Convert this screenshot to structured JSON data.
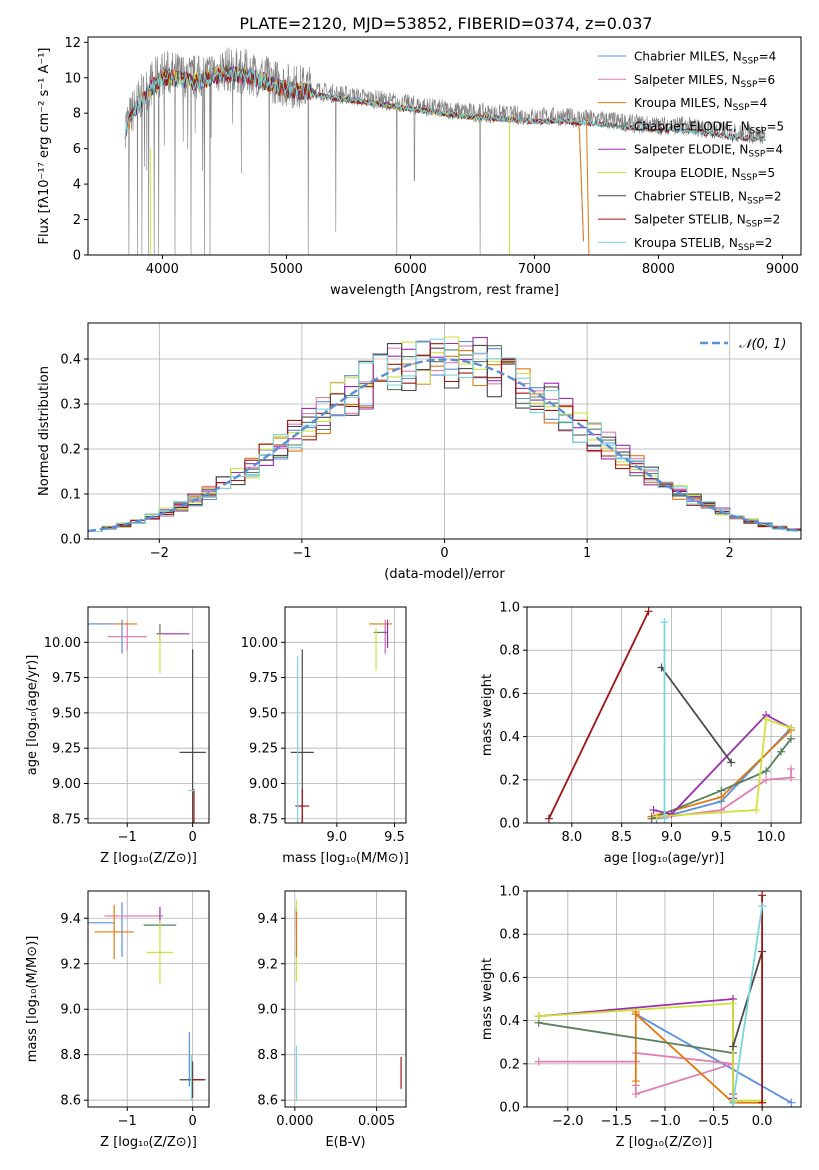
{
  "figure_title": "PLATE=2120, MJD=53852, FIBERID=0374, z=0.037",
  "colors": {
    "Chabrier MILES": "#5b8fe0",
    "Salpeter MILES": "#e07fb4",
    "Kroupa MILES": "#e07a10",
    "Chabrier ELODIE": "#5a7f5f",
    "Salpeter ELODIE": "#9b2fae",
    "Kroupa ELODIE": "#cfe23a",
    "Chabrier STELIB": "#4a4a4a",
    "Salpeter STELIB": "#a01414",
    "Kroupa STELIB": "#7ad6dc",
    "data": "#808080",
    "normal": "#5b8fd6"
  },
  "chart_data": [
    {
      "id": "spectrum",
      "type": "line",
      "title": "PLATE=2120, MJD=53852, FIBERID=0374, z=0.037",
      "xlabel": "wavelength [Angstrom, rest frame]",
      "ylabel": "Flux [fλ10⁻¹⁷ erg cm⁻² s⁻¹ A⁻¹]",
      "xlim": [
        3400,
        9150
      ],
      "ylim": [
        0,
        12.3
      ],
      "xticks": [
        "4000",
        "5000",
        "6000",
        "7000",
        "8000",
        "9000"
      ],
      "yticks": [
        "0",
        "2",
        "4",
        "6",
        "8",
        "10",
        "12"
      ],
      "legend_position": "top-right",
      "legend": [
        {
          "name": "Chabrier MILES",
          "nssp": "4"
        },
        {
          "name": "Salpeter MILES",
          "nssp": "6"
        },
        {
          "name": "Kroupa MILES",
          "nssp": "4"
        },
        {
          "name": "Chabrier ELODIE",
          "nssp": "5"
        },
        {
          "name": "Salpeter ELODIE",
          "nssp": "4"
        },
        {
          "name": "Kroupa ELODIE",
          "nssp": "5"
        },
        {
          "name": "Chabrier STELIB",
          "nssp": "2"
        },
        {
          "name": "Salpeter STELIB",
          "nssp": "2"
        },
        {
          "name": "Kroupa STELIB",
          "nssp": "2"
        }
      ],
      "data_continuum": [
        [
          3700,
          7.3
        ],
        [
          3800,
          8.6
        ],
        [
          3900,
          9.6
        ],
        [
          4000,
          10.3
        ],
        [
          4100,
          10.2
        ],
        [
          4200,
          10.1
        ],
        [
          4300,
          10.0
        ],
        [
          4400,
          10.3
        ],
        [
          4500,
          10.5
        ],
        [
          4600,
          10.4
        ],
        [
          4700,
          10.3
        ],
        [
          4800,
          10.1
        ],
        [
          4900,
          9.8
        ],
        [
          5000,
          9.6
        ],
        [
          5100,
          9.5
        ],
        [
          5200,
          9.4
        ],
        [
          5300,
          9.2
        ],
        [
          5400,
          9.1
        ],
        [
          5500,
          9.0
        ],
        [
          5600,
          8.9
        ],
        [
          5800,
          8.7
        ],
        [
          6000,
          8.5
        ],
        [
          6200,
          8.3
        ],
        [
          6400,
          8.1
        ],
        [
          6600,
          8.0
        ],
        [
          6800,
          7.9
        ],
        [
          7000,
          7.8
        ],
        [
          7200,
          7.8
        ],
        [
          7400,
          7.7
        ],
        [
          7600,
          7.6
        ],
        [
          7800,
          7.4
        ],
        [
          8000,
          7.3
        ],
        [
          8200,
          7.3
        ],
        [
          8400,
          7.1
        ],
        [
          8600,
          6.9
        ],
        [
          8800,
          6.8
        ],
        [
          8860,
          6.8
        ]
      ],
      "model_ranges": {
        "MILES": [
          3700,
          7400
        ],
        "ELODIE": [
          3900,
          6800
        ],
        "STELIB": [
          3700,
          8860
        ]
      }
    },
    {
      "id": "residuals",
      "type": "histogram",
      "xlabel": "(data-model)/error",
      "ylabel": "Normed distribution",
      "xlim": [
        -2.5,
        2.5
      ],
      "ylim": [
        0,
        0.48
      ],
      "xticks": [
        "−2",
        "−1",
        "0",
        "1",
        "2"
      ],
      "yticks": [
        "0.0",
        "0.1",
        "0.2",
        "0.3",
        "0.4"
      ],
      "bin_width": 0.1,
      "reference_curve": "𝒩(0, 1)",
      "legend_position": "top-right"
    },
    {
      "id": "age_vs_Z",
      "type": "scatter",
      "xlabel": "Z [log₁₀(Z/Z⊙)]",
      "ylabel": "age  [log₁₀(age/yr)]",
      "xlim": [
        -1.6,
        0.25
      ],
      "ylim": [
        8.72,
        10.25
      ],
      "xticks": [
        "−1",
        "0"
      ],
      "yticks": [
        "8.75",
        "9.00",
        "9.25",
        "9.50",
        "9.75",
        "10.00"
      ],
      "points": [
        {
          "series": "Chabrier MILES",
          "x": -1.08,
          "y": 10.04,
          "xerr": 0.0,
          "yerr": 0.12
        },
        {
          "series": "Salpeter MILES",
          "x": -1.0,
          "y": 10.04,
          "xerr": 0.3,
          "yerr": 0.1
        },
        {
          "series": "Kroupa MILES",
          "x": -1.2,
          "y": 10.13,
          "xerr": 0.35,
          "yerr": 0.0
        },
        {
          "series": "Chabrier ELODIE",
          "x": -0.5,
          "y": 10.07,
          "xerr": 0.0,
          "yerr": 0.06
        },
        {
          "series": "Salpeter ELODIE",
          "x": -0.3,
          "y": 10.06,
          "xerr": 0.25,
          "yerr": 0.0
        },
        {
          "series": "Kroupa ELODIE",
          "x": -0.5,
          "y": 9.92,
          "xerr": 0.0,
          "yerr": 0.14
        },
        {
          "series": "Chabrier STELIB",
          "x": 0.0,
          "y": 9.22,
          "xerr": 0.2,
          "yerr": 0.73
        },
        {
          "series": "Salpeter STELIB",
          "x": 0.02,
          "y": 8.84,
          "xerr": 0.0,
          "yerr": 0.12
        },
        {
          "series": "Kroupa STELIB",
          "x": -0.02,
          "y": 8.95,
          "xerr": 0.05,
          "yerr": 0.0
        },
        {
          "series": "Chabrier MILES",
          "x": -1.4,
          "y": 10.13,
          "xerr": 0.2,
          "yerr": 0.0
        }
      ]
    },
    {
      "id": "age_vs_mass",
      "type": "scatter",
      "xlabel": "mass [log₁₀(M/M⊙)]",
      "ylabel": "",
      "xlim": [
        8.55,
        9.6
      ],
      "ylim": [
        8.72,
        10.25
      ],
      "xticks": [
        "9.0",
        "9.5"
      ],
      "yticks": [
        "8.75",
        "9.00",
        "9.25",
        "9.50",
        "9.75",
        "10.00"
      ],
      "points": [
        {
          "series": "Chabrier MILES",
          "x": 9.42,
          "y": 10.04,
          "xerr": 0.0,
          "yerr": 0.12
        },
        {
          "series": "Salpeter MILES",
          "x": 9.42,
          "y": 10.04,
          "xerr": 0.0,
          "yerr": 0.12
        },
        {
          "series": "Kroupa MILES",
          "x": 9.38,
          "y": 10.13,
          "xerr": 0.1,
          "yerr": 0.0
        },
        {
          "series": "Chabrier ELODIE",
          "x": 9.38,
          "y": 10.07,
          "xerr": 0.06,
          "yerr": 0.0
        },
        {
          "series": "Salpeter ELODIE",
          "x": 9.44,
          "y": 10.06,
          "xerr": 0.0,
          "yerr": 0.1
        },
        {
          "series": "Kroupa ELODIE",
          "x": 9.34,
          "y": 9.95,
          "xerr": 0.0,
          "yerr": 0.15
        },
        {
          "series": "Chabrier STELIB",
          "x": 8.7,
          "y": 9.22,
          "xerr": 0.1,
          "yerr": 0.73
        },
        {
          "series": "Salpeter STELIB",
          "x": 8.7,
          "y": 8.84,
          "xerr": 0.06,
          "yerr": 0.12
        },
        {
          "series": "Kroupa STELIB",
          "x": 8.66,
          "y": 8.95,
          "xerr": 0.0,
          "yerr": 0.95
        }
      ]
    },
    {
      "id": "weight_vs_age",
      "type": "line",
      "xlabel": "age  [log₁₀(age/yr)]",
      "ylabel": "mass weight",
      "xlim": [
        7.55,
        10.3
      ],
      "ylim": [
        0,
        1.0
      ],
      "xticks": [
        "8.0",
        "8.5",
        "9.0",
        "9.5",
        "10.0"
      ],
      "yticks": [
        "0.0",
        "0.2",
        "0.4",
        "0.6",
        "0.8",
        "1.0"
      ],
      "series": [
        {
          "name": "Chabrier MILES",
          "points": [
            [
              8.85,
              0.02
            ],
            [
              9.5,
              0.1
            ],
            [
              10.2,
              0.44
            ]
          ]
        },
        {
          "name": "Salpeter MILES",
          "points": [
            [
              8.8,
              0.02
            ],
            [
              9.5,
              0.06
            ],
            [
              9.95,
              0.2
            ],
            [
              10.2,
              0.21
            ],
            [
              10.2,
              0.25
            ]
          ]
        },
        {
          "name": "Kroupa MILES",
          "points": [
            [
              8.8,
              0.03
            ],
            [
              9.5,
              0.12
            ],
            [
              10.2,
              0.43
            ]
          ]
        },
        {
          "name": "Chabrier ELODIE",
          "points": [
            [
              8.8,
              0.02
            ],
            [
              9.5,
              0.15
            ],
            [
              9.95,
              0.24
            ],
            [
              10.1,
              0.33
            ],
            [
              10.2,
              0.39
            ]
          ]
        },
        {
          "name": "Salpeter ELODIE",
          "points": [
            [
              8.82,
              0.06
            ],
            [
              9.0,
              0.04
            ],
            [
              9.95,
              0.5
            ],
            [
              10.2,
              0.44
            ]
          ]
        },
        {
          "name": "Kroupa ELODIE",
          "points": [
            [
              8.85,
              0.03
            ],
            [
              9.85,
              0.06
            ],
            [
              9.95,
              0.48
            ],
            [
              10.2,
              0.44
            ]
          ]
        },
        {
          "name": "Chabrier STELIB",
          "points": [
            [
              8.9,
              0.72
            ],
            [
              9.6,
              0.28
            ]
          ]
        },
        {
          "name": "Salpeter STELIB",
          "points": [
            [
              7.77,
              0.02
            ],
            [
              8.77,
              0.98
            ]
          ]
        },
        {
          "name": "Kroupa STELIB",
          "points": [
            [
              8.93,
              0.02
            ],
            [
              8.93,
              0.93
            ]
          ]
        }
      ]
    },
    {
      "id": "mass_vs_Z",
      "type": "scatter",
      "xlabel": "Z [log₁₀(Z/Z⊙)]",
      "ylabel": "mass  [log₁₀(M/M⊙)]",
      "xlim": [
        -1.6,
        0.25
      ],
      "ylim": [
        8.57,
        9.52
      ],
      "xticks": [
        "−1",
        "0"
      ],
      "yticks": [
        "8.6",
        "8.8",
        "9.0",
        "9.2",
        "9.4"
      ],
      "points": [
        {
          "series": "Chabrier MILES",
          "x": -1.08,
          "y": 9.35,
          "xerr": 0.0,
          "yerr": 0.12
        },
        {
          "series": "Salpeter MILES",
          "x": -0.9,
          "y": 9.41,
          "xerr": 0.45,
          "yerr": 0.0
        },
        {
          "series": "Kroupa MILES",
          "x": -1.2,
          "y": 9.34,
          "xerr": 0.3,
          "yerr": 0.12
        },
        {
          "series": "Chabrier ELODIE",
          "x": -0.5,
          "y": 9.37,
          "xerr": 0.25,
          "yerr": 0.0
        },
        {
          "series": "Salpeter ELODIE",
          "x": -0.5,
          "y": 9.4,
          "xerr": 0.0,
          "yerr": 0.05
        },
        {
          "series": "Kroupa ELODIE",
          "x": -0.5,
          "y": 9.25,
          "xerr": 0.2,
          "yerr": 0.14
        },
        {
          "series": "Chabrier STELIB",
          "x": 0.0,
          "y": 8.69,
          "xerr": 0.2,
          "yerr": 0.08
        },
        {
          "series": "Salpeter STELIB",
          "x": 0.05,
          "y": 8.69,
          "xerr": 0.12,
          "yerr": 0.0
        },
        {
          "series": "Kroupa STELIB",
          "x": -0.02,
          "y": 8.7,
          "xerr": 0.0,
          "yerr": 0.1
        },
        {
          "series": "Chabrier MILES",
          "x": -1.4,
          "y": 9.38,
          "xerr": 0.2,
          "yerr": 0.0
        },
        {
          "series": "Chabrier MILES",
          "x": -0.05,
          "y": 8.78,
          "xerr": 0.0,
          "yerr": 0.12
        }
      ]
    },
    {
      "id": "mass_vs_ebv",
      "type": "scatter",
      "xlabel": "E(B-V)",
      "ylabel": "",
      "xlim": [
        -0.0006,
        0.0068
      ],
      "ylim": [
        8.57,
        9.52
      ],
      "xticks": [
        "0.000",
        "0.005"
      ],
      "yticks": [
        "8.6",
        "8.8",
        "9.0",
        "9.2",
        "9.4"
      ],
      "points": [
        {
          "series": "Salpeter ELODIE",
          "x": 0.0001,
          "y": 9.4,
          "xerr": 0.0,
          "yerr": 0.05
        },
        {
          "series": "Kroupa ELODIE",
          "x": 0.0001,
          "y": 9.3,
          "xerr": 0.0,
          "yerr": 0.18
        },
        {
          "series": "Kroupa MILES",
          "x": 0.0001,
          "y": 9.33,
          "xerr": 0.0,
          "yerr": 0.1
        },
        {
          "series": "Kroupa STELIB",
          "x": 0.0001,
          "y": 8.72,
          "xerr": 0.0,
          "yerr": 0.12
        },
        {
          "series": "Salpeter STELIB",
          "x": 0.0065,
          "y": 8.72,
          "xerr": 0.0,
          "yerr": 0.07
        }
      ]
    },
    {
      "id": "weight_vs_Z",
      "type": "line",
      "xlabel": "Z [log₁₀(Z/Z⊙)]",
      "ylabel": "mass weight",
      "xlim": [
        -2.42,
        0.4
      ],
      "ylim": [
        0,
        1.0
      ],
      "xticks": [
        "−2.0",
        "−1.5",
        "−1.0",
        "−0.5",
        "0.0"
      ],
      "yticks": [
        "0.0",
        "0.2",
        "0.4",
        "0.6",
        "0.8",
        "1.0"
      ],
      "series": [
        {
          "name": "Chabrier MILES",
          "points": [
            [
              -1.3,
              0.43
            ],
            [
              0.3,
              0.02
            ]
          ]
        },
        {
          "name": "Salpeter MILES",
          "points": [
            [
              -2.3,
              0.21
            ],
            [
              -1.3,
              0.21
            ],
            [
              -1.3,
              0.25
            ],
            [
              -0.3,
              0.2
            ],
            [
              -1.3,
              0.06
            ],
            [
              -1.3,
              0.1
            ]
          ]
        },
        {
          "name": "Kroupa MILES",
          "points": [
            [
              -1.3,
              0.44
            ],
            [
              -1.3,
              0.12
            ],
            [
              -1.3,
              0.43
            ],
            [
              -0.3,
              0.02
            ],
            [
              0.0,
              0.02
            ]
          ]
        },
        {
          "name": "Chabrier ELODIE",
          "points": [
            [
              -2.3,
              0.39
            ],
            [
              -0.3,
              0.25
            ],
            [
              -0.3,
              0.02
            ]
          ]
        },
        {
          "name": "Salpeter ELODIE",
          "points": [
            [
              -2.3,
              0.42
            ],
            [
              -0.3,
              0.5
            ],
            [
              -0.3,
              0.04
            ],
            [
              -0.3,
              0.06
            ]
          ]
        },
        {
          "name": "Kroupa ELODIE",
          "points": [
            [
              -2.3,
              0.42
            ],
            [
              -0.3,
              0.48
            ],
            [
              -0.3,
              0.03
            ],
            [
              0.0,
              0.03
            ]
          ]
        },
        {
          "name": "Chabrier STELIB",
          "points": [
            [
              -0.3,
              0.28
            ],
            [
              0.0,
              0.72
            ]
          ]
        },
        {
          "name": "Salpeter STELIB",
          "points": [
            [
              0.0,
              0.02
            ],
            [
              0.0,
              0.98
            ]
          ]
        },
        {
          "name": "Kroupa STELIB",
          "points": [
            [
              -0.3,
              0.02
            ],
            [
              0.0,
              0.93
            ]
          ]
        }
      ]
    }
  ]
}
